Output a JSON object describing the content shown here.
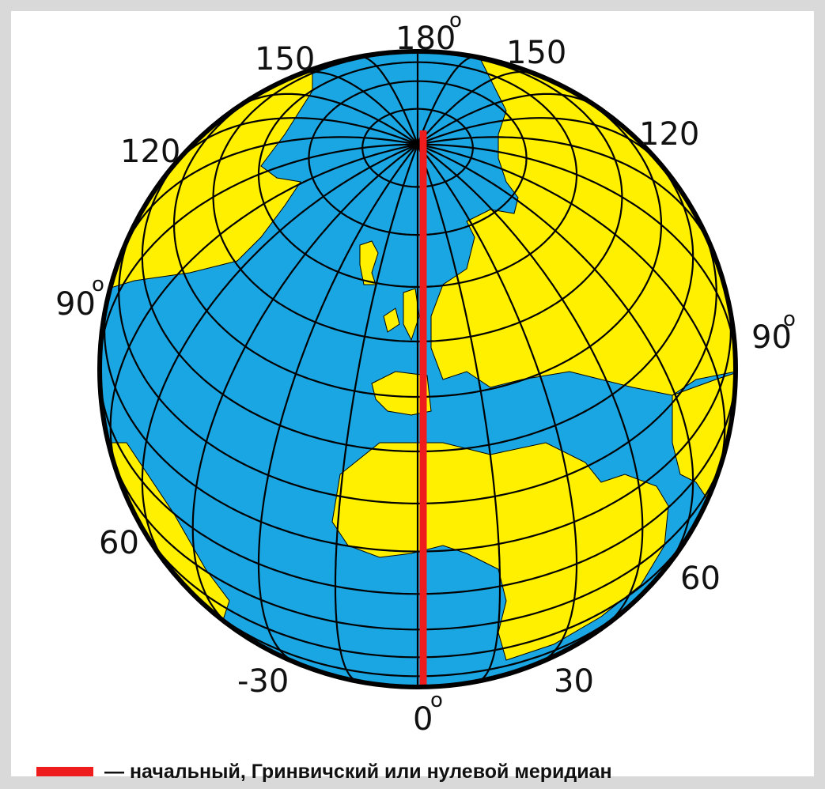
{
  "map": {
    "type": "orthographic-globe",
    "colors": {
      "ocean": "#1aa6e3",
      "land": "#fff000",
      "graticule": "#000000",
      "prime_meridian": "#ee1c1c"
    },
    "longitude_labels": {
      "top": "180",
      "top_left": "150",
      "top_right": "150",
      "upper_left": "120",
      "upper_right": "120",
      "left": "90",
      "right": "90",
      "lower_left": "60",
      "lower_right": "60",
      "bottom_left": "-30",
      "bottom_right": "30",
      "bottom": "0"
    },
    "degree_sign": "o"
  },
  "legend": {
    "text": "— начальный, Гринвичский или нулевой меридиан",
    "color": "#ee1c1c"
  }
}
